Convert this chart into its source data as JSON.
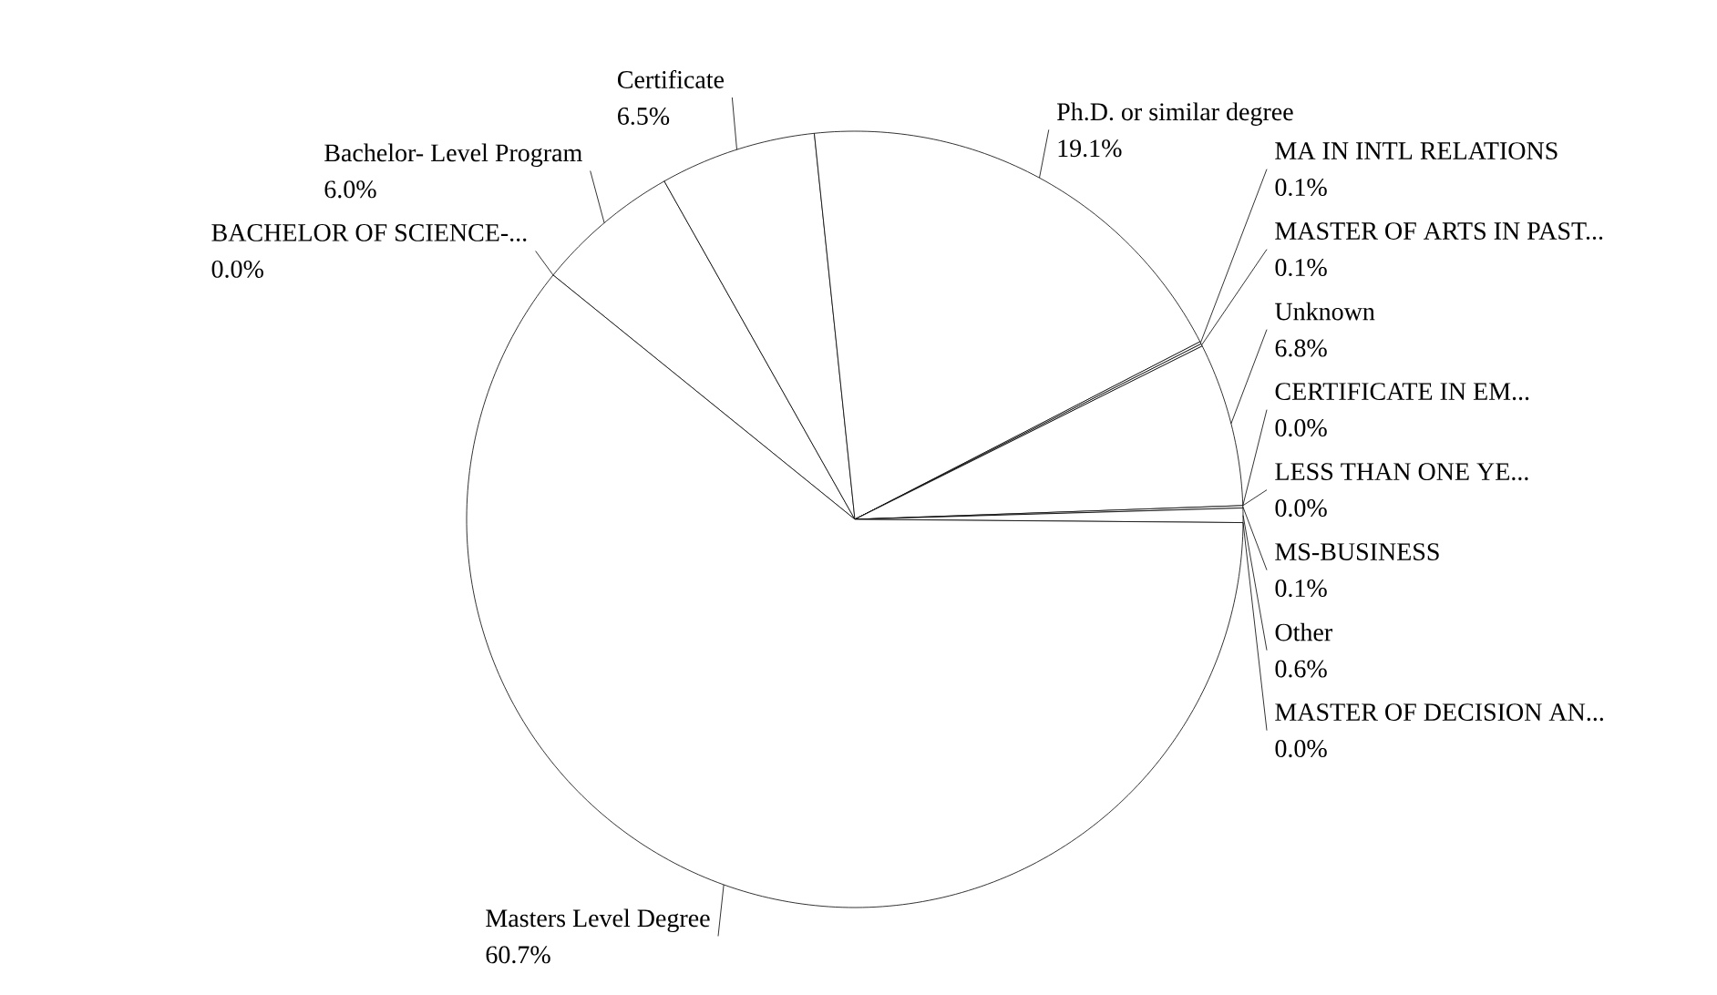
{
  "chart_data": {
    "type": "pie",
    "categories": [
      "BACHELOR OF SCIENCE-...",
      "Bachelor- Level Program",
      "Certificate",
      "Ph.D. or similar degree",
      "MA IN INTL RELATIONS",
      "MASTER OF ARTS IN PAST...",
      "Unknown",
      "CERTIFICATE IN EM...",
      "LESS THAN ONE YE...",
      "MS-BUSINESS",
      "Other",
      "MASTER OF DECISION AN...",
      "Masters Level Degree"
    ],
    "values": [
      0.0,
      6.0,
      6.5,
      19.1,
      0.1,
      0.1,
      6.8,
      0.0,
      0.0,
      0.1,
      0.6,
      0.0,
      60.7
    ],
    "value_labels": [
      "0.0%",
      "6.0%",
      "6.5%",
      "19.1%",
      "0.1%",
      "0.1%",
      "6.8%",
      "0.0%",
      "0.0%",
      "0.1%",
      "0.6%",
      "0.0%",
      "60.7%"
    ],
    "colors": [
      "#ffffff",
      "#ffffff",
      "#ffffff",
      "#ffffff",
      "#ffffff",
      "#ffffff",
      "#ffffff",
      "#ffffff",
      "#ffffff",
      "#ffffff",
      "#ffffff",
      "#ffffff",
      "#ffffff"
    ]
  }
}
